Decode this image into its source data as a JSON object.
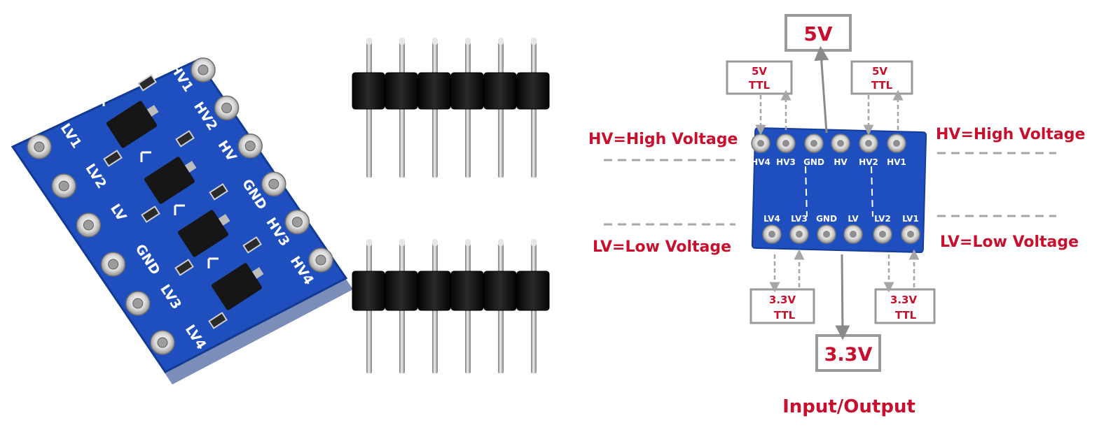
{
  "colors": {
    "pcb_blue": "#1f4fbf",
    "pcb_dark": "#163c99",
    "label_red": "#c8102e",
    "box_gray": "#9a9a9a",
    "pin_gold": "#c7c7c7",
    "header_black": "#141414"
  },
  "board_photo": {
    "left_pins": [
      "LV1",
      "LV2",
      "LV",
      "GND",
      "LV3",
      "LV4"
    ],
    "right_pins": [
      "HV1",
      "HV2",
      "HV",
      "GND",
      "HV3",
      "HV4"
    ]
  },
  "header_pins": {
    "rows": 2,
    "pins_per_row": 6
  },
  "diagram": {
    "top_voltage": "5V",
    "bottom_voltage": "3.3V",
    "ttl_top_left": [
      "5V",
      "TTL"
    ],
    "ttl_top_right": [
      "5V",
      "TTL"
    ],
    "ttl_bottom_left": [
      "3.3V",
      "TTL"
    ],
    "ttl_bottom_right": [
      "3.3V",
      "TTL"
    ],
    "hv_label": "HV=High Voltage",
    "lv_label": "LV=Low Voltage",
    "io_label": "Input/Output",
    "board_top_pins": [
      "HV4",
      "HV3",
      "GND",
      "HV",
      "HV2",
      "HV1"
    ],
    "board_bottom_pins": [
      "LV4",
      "LV3",
      "GND",
      "LV",
      "LV2",
      "LV1"
    ]
  }
}
